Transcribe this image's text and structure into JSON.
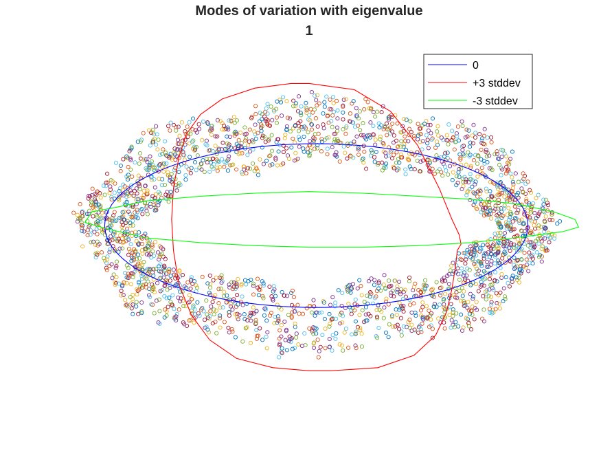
{
  "chart_data": {
    "type": "scatter",
    "title": [
      "Modes of variation with eigenvalue",
      "1"
    ],
    "xlabel": "",
    "ylabel": "",
    "axes_visible": false,
    "grid": false,
    "legend_position": "top-right",
    "xlim": [
      -1.5,
      1.5
    ],
    "ylim": [
      -1.25,
      1.1
    ],
    "series": [
      {
        "name": "0",
        "kind": "line",
        "color": "#0000ff",
        "shape": "ellipse",
        "cx": 0.04,
        "cy": -0.04,
        "rx": 1.17,
        "ry": 0.53
      },
      {
        "name": "+3 stddev",
        "kind": "line",
        "color": "#ff0000",
        "shape": "polygon",
        "x": [
          0.0,
          0.25,
          0.45,
          0.6,
          0.72,
          0.79,
          0.83,
          0.84,
          0.82,
          0.81,
          0.79,
          0.76,
          0.7,
          0.58,
          0.38,
          0.12,
          0.0,
          -0.2,
          -0.4,
          -0.55,
          -0.65,
          -0.72,
          -0.75,
          -0.76,
          -0.75,
          -0.72,
          -0.68,
          -0.6,
          -0.48,
          -0.3,
          -0.1,
          0.0
        ],
        "y": [
          0.88,
          0.84,
          0.7,
          0.48,
          0.2,
          0.0,
          -0.1,
          -0.16,
          -0.2,
          -0.3,
          -0.45,
          -0.6,
          -0.75,
          -0.88,
          -0.96,
          -0.98,
          -0.98,
          -0.96,
          -0.9,
          -0.78,
          -0.62,
          -0.42,
          -0.2,
          0.0,
          0.2,
          0.4,
          0.55,
          0.68,
          0.78,
          0.85,
          0.88,
          0.88
        ]
      },
      {
        "name": "-3 stddev",
        "kind": "line",
        "color": "#00ff00",
        "shape": "polygon",
        "x": [
          -1.2,
          -1.06,
          -0.9,
          -0.6,
          -0.3,
          0.0,
          0.3,
          0.6,
          0.9,
          1.15,
          1.35,
          1.47,
          1.49,
          1.4,
          1.2,
          0.9,
          0.6,
          0.3,
          0.0,
          -0.3,
          -0.6,
          -0.9,
          -1.12,
          -1.24,
          -1.2
        ],
        "y": [
          0.05,
          0.08,
          0.12,
          0.15,
          0.17,
          0.18,
          0.17,
          0.15,
          0.13,
          0.1,
          0.05,
          0.0,
          -0.05,
          -0.08,
          -0.11,
          -0.15,
          -0.17,
          -0.18,
          -0.18,
          -0.17,
          -0.15,
          -0.12,
          -0.06,
          -0.02,
          0.05
        ]
      },
      {
        "name": "",
        "kind": "scatter",
        "marker": "circle-open",
        "note": "dense ring of sample points drawn by the chart script",
        "colors": [
          "#0072bd",
          "#d95319",
          "#edb120",
          "#7e2f8e",
          "#77ac30",
          "#4dbeee",
          "#a2142f"
        ],
        "ring": {
          "cx": 0.04,
          "cy": -0.04,
          "rx_outer": 1.34,
          "ry_outer": 0.86,
          "rx_inner": 0.92,
          "ry_inner": 0.36,
          "count": 2600
        }
      }
    ]
  }
}
